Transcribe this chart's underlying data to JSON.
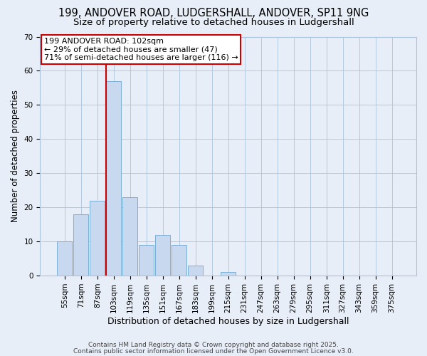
{
  "title": "199, ANDOVER ROAD, LUDGERSHALL, ANDOVER, SP11 9NG",
  "subtitle": "Size of property relative to detached houses in Ludgershall",
  "xlabel": "Distribution of detached houses by size in Ludgershall",
  "ylabel": "Number of detached properties",
  "categories": [
    "55sqm",
    "71sqm",
    "87sqm",
    "103sqm",
    "119sqm",
    "135sqm",
    "151sqm",
    "167sqm",
    "183sqm",
    "199sqm",
    "215sqm",
    "231sqm",
    "247sqm",
    "263sqm",
    "279sqm",
    "295sqm",
    "311sqm",
    "327sqm",
    "343sqm",
    "359sqm",
    "375sqm"
  ],
  "values": [
    10,
    18,
    22,
    57,
    23,
    9,
    12,
    9,
    3,
    0,
    1,
    0,
    0,
    0,
    0,
    0,
    0,
    0,
    0,
    0,
    0
  ],
  "bar_color": "#c8d9ef",
  "bar_edge_color": "#7bafd4",
  "vline_x_index": 3,
  "vline_color": "#cc0000",
  "ylim": [
    0,
    70
  ],
  "yticks": [
    0,
    10,
    20,
    30,
    40,
    50,
    60,
    70
  ],
  "annotation_text": "199 ANDOVER ROAD: 102sqm\n← 29% of detached houses are smaller (47)\n71% of semi-detached houses are larger (116) →",
  "annotation_box_facecolor": "#ffffff",
  "annotation_box_edgecolor": "#cc0000",
  "bg_color": "#e8eef8",
  "plot_bg_color": "#e8eef8",
  "grid_color": "#aac4dc",
  "footer1": "Contains HM Land Registry data © Crown copyright and database right 2025.",
  "footer2": "Contains public sector information licensed under the Open Government Licence v3.0.",
  "title_fontsize": 10.5,
  "subtitle_fontsize": 9.5,
  "xlabel_fontsize": 9,
  "ylabel_fontsize": 8.5,
  "tick_fontsize": 7.5,
  "annotation_fontsize": 8,
  "footer_fontsize": 6.5
}
